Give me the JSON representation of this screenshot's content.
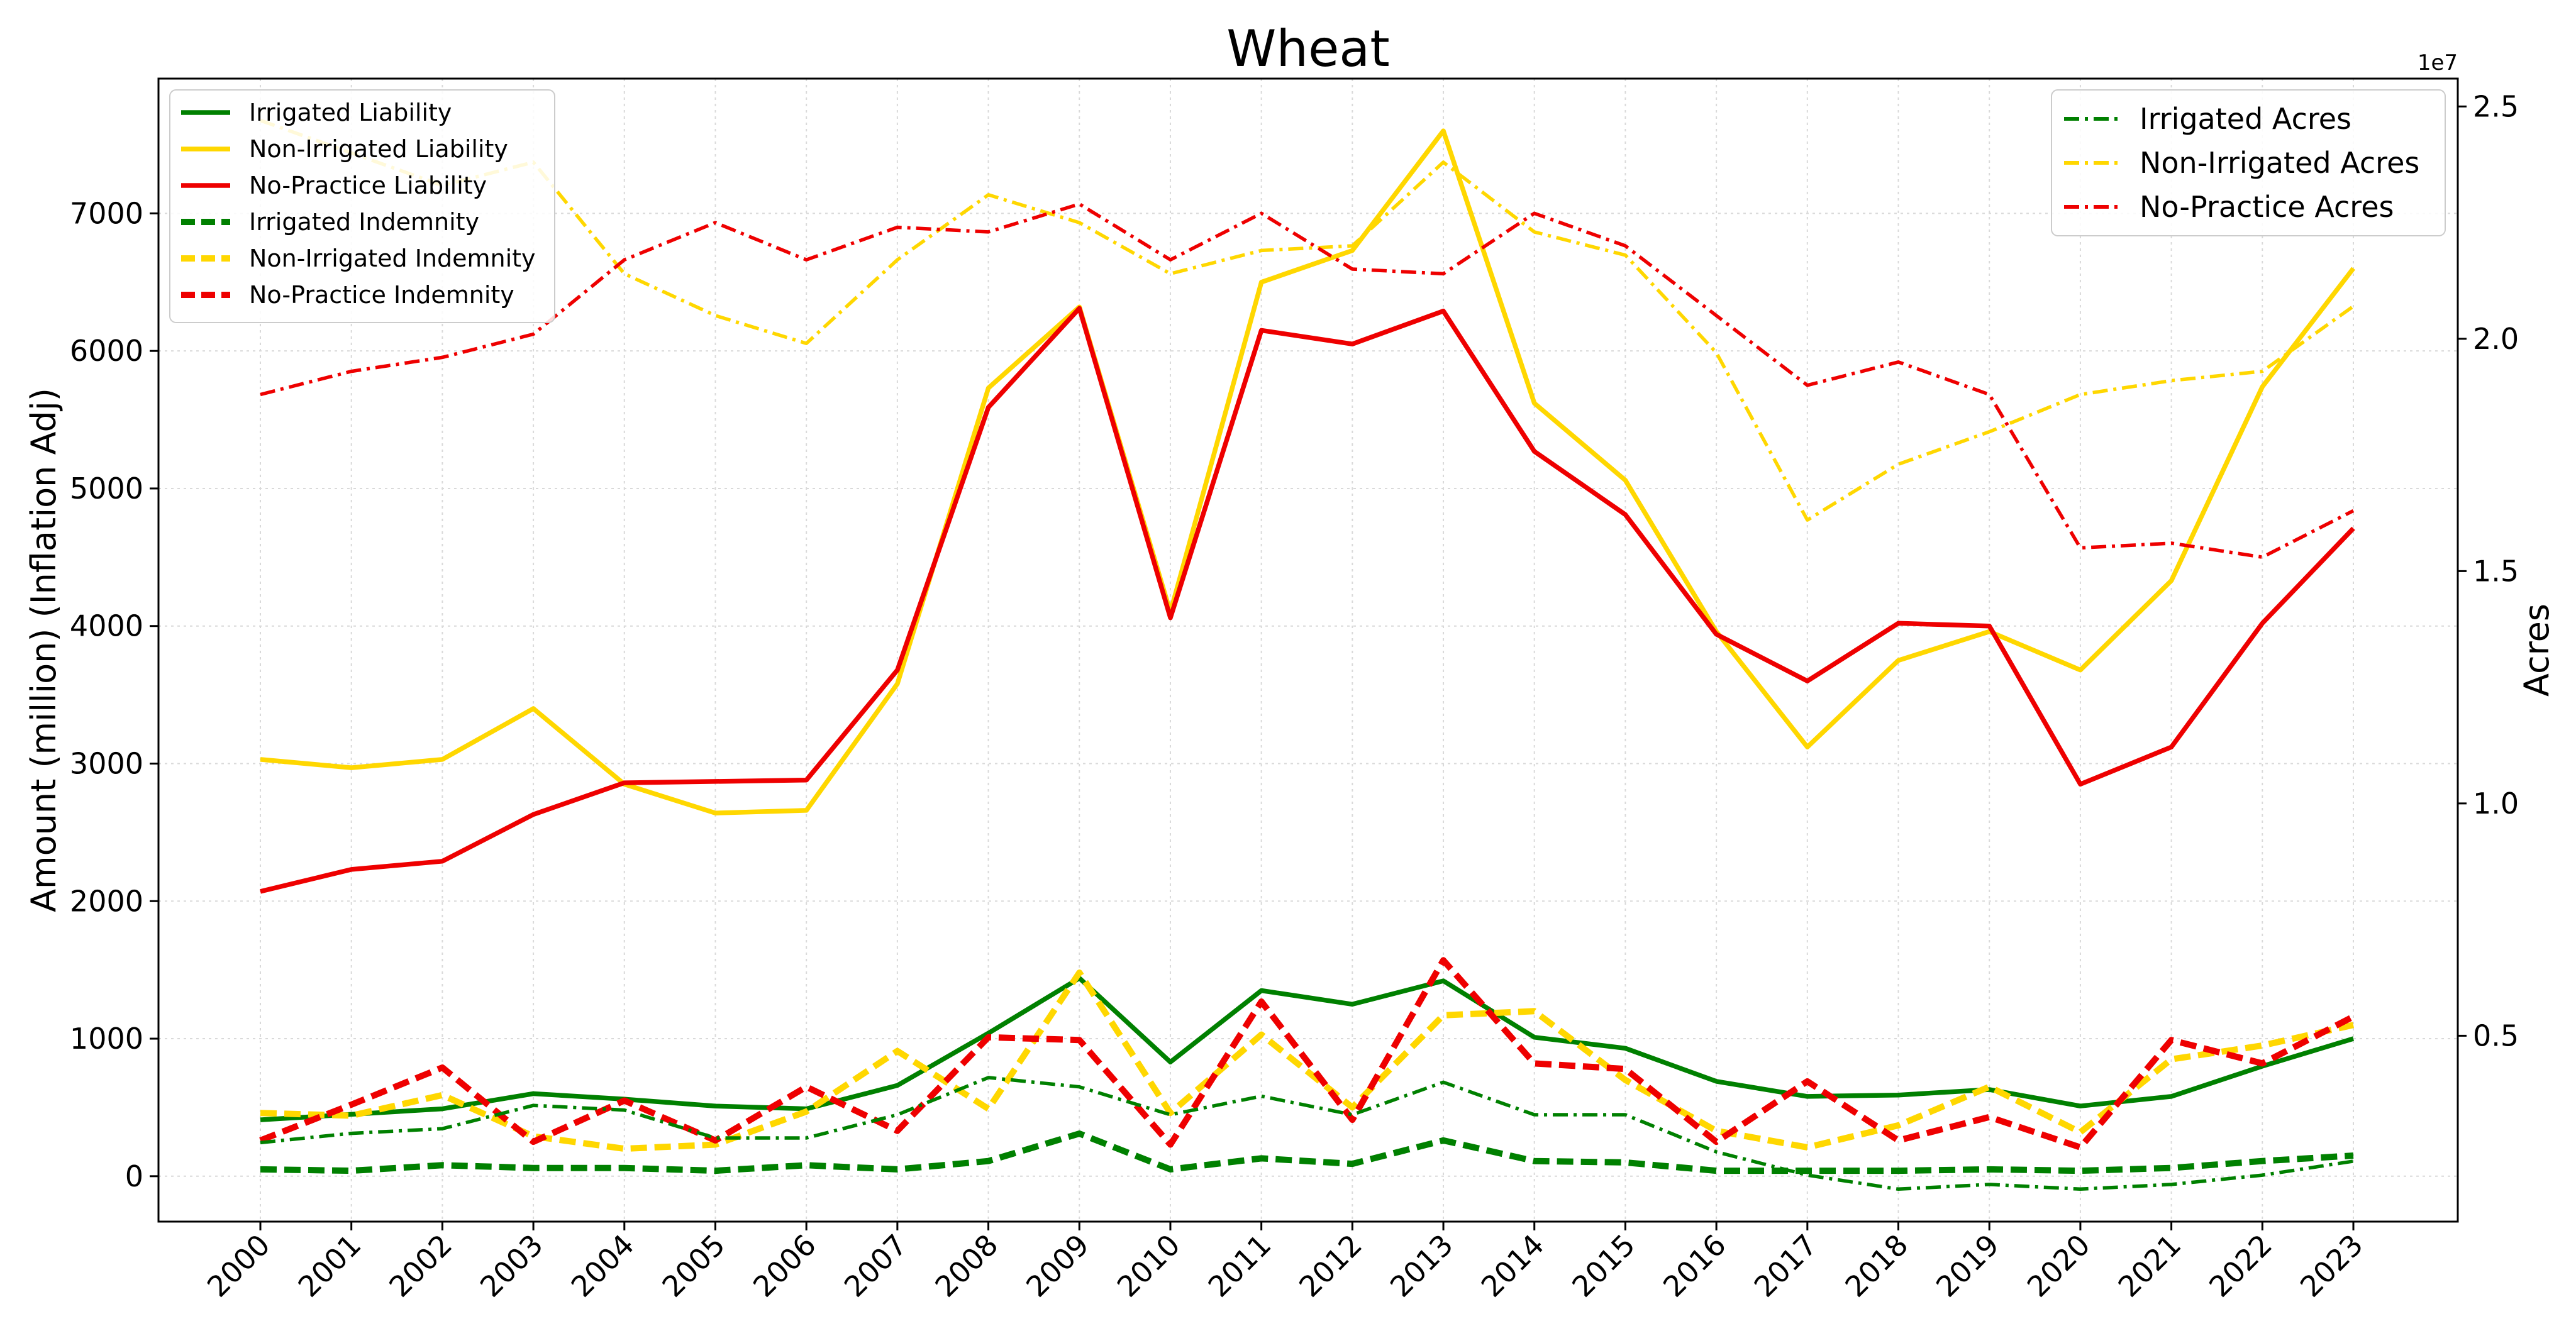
{
  "chart_data": {
    "type": "line",
    "title": "Wheat",
    "xlabel": "",
    "ylabel": "Amount (million) (Inflation Adj)",
    "y2label": "Acres",
    "y2_offset_text": "1e7",
    "x": [
      2000,
      2001,
      2002,
      2003,
      2004,
      2005,
      2006,
      2007,
      2008,
      2009,
      2010,
      2011,
      2012,
      2013,
      2014,
      2015,
      2016,
      2017,
      2018,
      2019,
      2020,
      2021,
      2022,
      2023
    ],
    "ylim": [
      -330,
      7980
    ],
    "y2lim": [
      1000000,
      25600000
    ],
    "yticks": [
      0,
      1000,
      2000,
      3000,
      4000,
      5000,
      6000,
      7000
    ],
    "y2ticks": [
      5000000,
      10000000,
      15000000,
      20000000,
      25000000
    ],
    "y2tick_labels": [
      "0.5",
      "1.0",
      "1.5",
      "2.0",
      "2.5"
    ],
    "grid": true,
    "legend_left_position": "upper-left",
    "legend_right_position": "upper-right",
    "series": [
      {
        "name": "Irrigated Liability",
        "axis": "left",
        "color": "#008000",
        "style": "solid",
        "values": [
          410,
          450,
          490,
          600,
          560,
          510,
          490,
          660,
          1040,
          1440,
          830,
          1350,
          1250,
          1420,
          1010,
          930,
          690,
          580,
          590,
          630,
          510,
          580,
          800,
          1000
        ]
      },
      {
        "name": "Non-Irrigated Liability",
        "axis": "left",
        "color": "#FFD700",
        "style": "solid",
        "values": [
          3030,
          2970,
          3030,
          3400,
          2850,
          2640,
          2660,
          3580,
          5730,
          6320,
          4100,
          6500,
          6730,
          7600,
          5620,
          5060,
          3960,
          3120,
          3750,
          3960,
          3680,
          4330,
          5740,
          6600
        ]
      },
      {
        "name": "No-Practice Liability",
        "axis": "left",
        "color": "#EE0000",
        "style": "solid",
        "values": [
          2070,
          2230,
          2290,
          2630,
          2860,
          2870,
          2880,
          3680,
          5590,
          6310,
          4060,
          6150,
          6050,
          6290,
          5270,
          4810,
          3940,
          3600,
          4020,
          4000,
          2850,
          3120,
          4020,
          4710
        ]
      },
      {
        "name": "Irrigated Indemnity",
        "axis": "left",
        "color": "#008000",
        "style": "dashed",
        "values": [
          50,
          40,
          80,
          60,
          60,
          40,
          80,
          50,
          110,
          310,
          50,
          130,
          90,
          260,
          110,
          100,
          40,
          40,
          40,
          50,
          40,
          60,
          110,
          150
        ]
      },
      {
        "name": "Non-Irrigated Indemnity",
        "axis": "left",
        "color": "#FFD700",
        "style": "dashed",
        "values": [
          460,
          440,
          590,
          290,
          200,
          230,
          470,
          910,
          490,
          1480,
          460,
          1030,
          500,
          1170,
          1200,
          700,
          330,
          210,
          370,
          650,
          320,
          850,
          950,
          1100
        ]
      },
      {
        "name": "No-Practice Indemnity",
        "axis": "left",
        "color": "#EE0000",
        "style": "dashed",
        "values": [
          260,
          520,
          790,
          250,
          550,
          260,
          650,
          330,
          1010,
          990,
          230,
          1270,
          410,
          1570,
          820,
          780,
          250,
          690,
          260,
          430,
          210,
          990,
          820,
          1160
        ]
      },
      {
        "name": "Irrigated Acres",
        "axis": "right",
        "color": "#008000",
        "style": "dashdot",
        "values": [
          2700000,
          2900000,
          3000000,
          3500000,
          3400000,
          2800000,
          2800000,
          3300000,
          4100000,
          3900000,
          3300000,
          3700000,
          3300000,
          4000000,
          3300000,
          3300000,
          2500000,
          2000000,
          1700000,
          1800000,
          1700000,
          1800000,
          2000000,
          2300000
        ]
      },
      {
        "name": "Non-Irrigated Acres",
        "axis": "right",
        "color": "#FFD700",
        "style": "dashdot",
        "values": [
          24700000,
          24000000,
          23300000,
          23800000,
          21400000,
          20500000,
          19900000,
          21700000,
          23100000,
          22500000,
          21400000,
          21900000,
          22000000,
          23800000,
          22300000,
          21800000,
          19700000,
          16100000,
          17300000,
          18000000,
          18800000,
          19100000,
          19300000,
          20700000
        ]
      },
      {
        "name": "No-Practice Acres",
        "axis": "right",
        "color": "#EE0000",
        "style": "dashdot",
        "values": [
          18800000,
          19300000,
          19600000,
          20100000,
          21700000,
          22500000,
          21700000,
          22400000,
          22300000,
          22900000,
          21700000,
          22700000,
          21500000,
          21400000,
          22700000,
          22000000,
          20500000,
          19000000,
          19500000,
          18800000,
          15500000,
          15600000,
          15300000,
          16300000
        ]
      }
    ]
  }
}
